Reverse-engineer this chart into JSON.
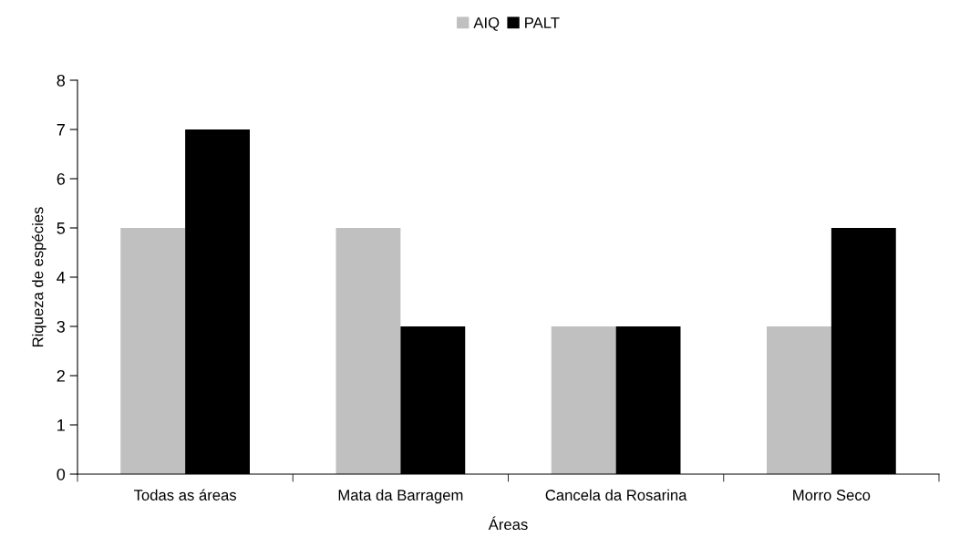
{
  "chart_data": {
    "type": "bar",
    "xlabel": "Áreas",
    "ylabel": "Riqueza de espécies",
    "categories": [
      "Todas as áreas",
      "Mata da Barragem",
      "Cancela da Rosarina",
      "Morro Seco"
    ],
    "series": [
      {
        "name": "AIQ",
        "color": "#c0c0c0",
        "values": [
          5,
          5,
          3,
          3
        ]
      },
      {
        "name": "PALT",
        "color": "#000000",
        "values": [
          7,
          3,
          3,
          5
        ]
      }
    ],
    "ylim": [
      0,
      8
    ],
    "yticks": [
      0,
      1,
      2,
      3,
      4,
      5,
      6,
      7,
      8
    ],
    "grid": false,
    "legend": "top"
  }
}
